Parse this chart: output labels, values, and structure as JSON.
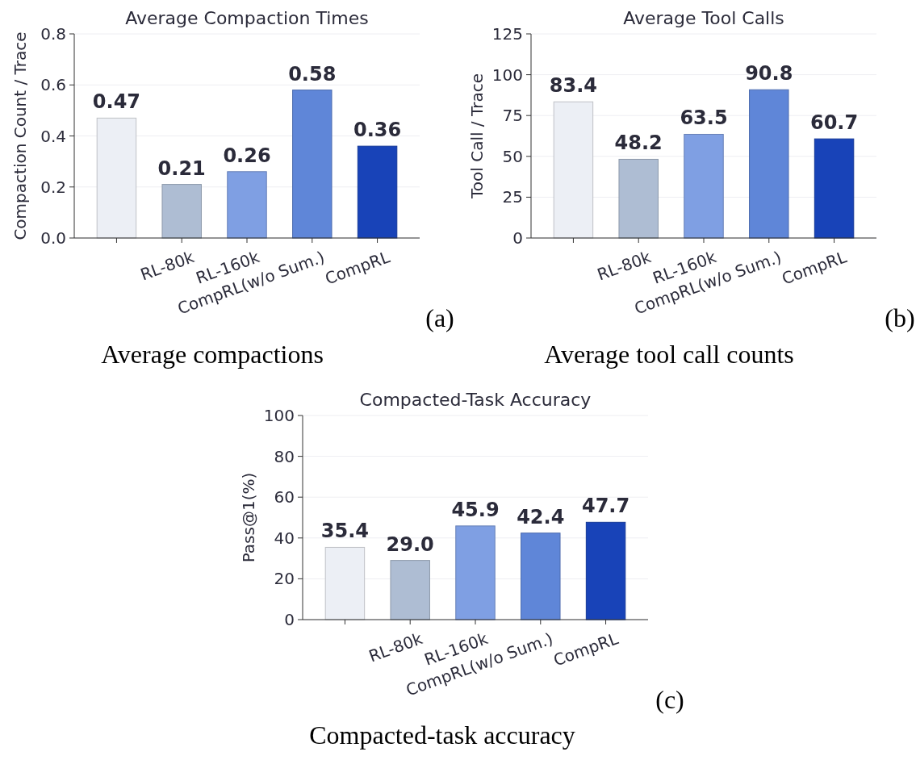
{
  "chart_data": [
    {
      "type": "bar",
      "title": "Average Compaction Times",
      "ylabel": "Compaction Count / Trace",
      "categories": [
        null,
        "RL-80k",
        "RL-160k",
        "CompRL(w/o Sum.)",
        "CompRL"
      ],
      "values": [
        0.47,
        0.21,
        0.26,
        0.58,
        0.36
      ],
      "value_labels": [
        "0.47",
        "0.21",
        "0.26",
        "0.58",
        "0.36"
      ],
      "colors": [
        "#eceff5",
        "#aebdd3",
        "#7f9fe3",
        "#5f86d8",
        "#1843b8"
      ],
      "ylim": [
        0,
        0.8
      ],
      "yticks": [
        {
          "value": 0,
          "label": "0.0"
        },
        {
          "value": 0.2,
          "label": "0.2"
        },
        {
          "value": 0.4,
          "label": "0.4"
        },
        {
          "value": 0.6,
          "label": "0.6"
        },
        {
          "value": 0.8,
          "label": "0.8"
        }
      ],
      "grid": "y",
      "annotations": [
        "(a)",
        "Average compactions"
      ]
    },
    {
      "type": "bar",
      "title": "Average Tool Calls",
      "ylabel": "Tool Call / Trace",
      "categories": [
        null,
        "RL-80k",
        "RL-160k",
        "CompRL(w/o Sum.)",
        "CompRL"
      ],
      "values": [
        83.4,
        48.2,
        63.5,
        90.8,
        60.7
      ],
      "value_labels": [
        "83.4",
        "48.2",
        "63.5",
        "90.8",
        "60.7"
      ],
      "colors": [
        "#eceff5",
        "#aebdd3",
        "#7f9fe3",
        "#5f86d8",
        "#1843b8"
      ],
      "ylim": [
        0,
        125
      ],
      "yticks": [
        0,
        25,
        50,
        75,
        100,
        125
      ],
      "grid": "y",
      "annotations": [
        "(b)",
        "Average tool call counts"
      ]
    },
    {
      "type": "bar",
      "title": "Compacted-Task Accuracy",
      "ylabel": "Pass@1(%)",
      "categories": [
        null,
        "RL-80k",
        "RL-160k",
        "CompRL(w/o Sum.)",
        "CompRL"
      ],
      "values": [
        35.4,
        29.0,
        45.9,
        42.4,
        47.7
      ],
      "value_labels": [
        "35.4",
        "29.0",
        "45.9",
        "42.4",
        "47.7"
      ],
      "colors": [
        "#eceff5",
        "#aebdd3",
        "#7f9fe3",
        "#5f86d8",
        "#1843b8"
      ],
      "ylim": [
        0,
        100
      ],
      "yticks": [
        0,
        20,
        40,
        60,
        80,
        100
      ],
      "grid": "y",
      "annotations": [
        "(c)",
        "Compacted-task accuracy"
      ]
    }
  ]
}
